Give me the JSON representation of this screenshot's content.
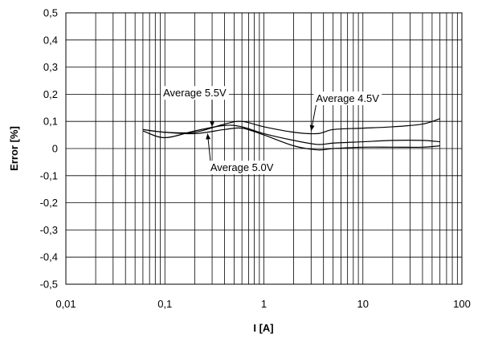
{
  "chart_data": {
    "type": "line",
    "xlabel": "I [A]",
    "ylabel": "Error [%]",
    "x_scale": "log",
    "xlim": [
      0.01,
      100
    ],
    "ylim": [
      -0.5,
      0.5
    ],
    "grid": true,
    "x_ticks": [
      0.01,
      0.1,
      1,
      10,
      100
    ],
    "x_tick_labels": [
      "0,01",
      "0,1",
      "1",
      "10",
      "100"
    ],
    "y_ticks": [
      0.5,
      0.4,
      0.3,
      0.2,
      0.1,
      0,
      -0.1,
      -0.2,
      -0.3,
      -0.4,
      -0.5
    ],
    "y_tick_labels": [
      "0,5",
      "0,4",
      "0,3",
      "0,2",
      "0,1",
      "0",
      "-0,1",
      "-0,2",
      "-0,3",
      "-0,4",
      "-0,5"
    ],
    "series": [
      {
        "x": [
          0.06,
          0.1,
          0.2,
          0.4,
          0.6,
          1,
          2,
          3.5,
          5,
          10,
          20,
          40,
          60
        ],
        "y": [
          0.07,
          0.06,
          0.06,
          0.09,
          0.1,
          0.08,
          0.06,
          0.055,
          0.07,
          0.075,
          0.08,
          0.09,
          0.11
        ]
      },
      {
        "x": [
          0.06,
          0.1,
          0.2,
          0.4,
          0.6,
          1,
          2,
          3.5,
          5,
          10,
          20,
          40,
          60
        ],
        "y": [
          0.065,
          0.04,
          0.065,
          0.085,
          0.08,
          0.055,
          0.03,
          0.015,
          0.02,
          0.025,
          0.03,
          0.03,
          0.025
        ]
      },
      {
        "x": [
          0.06,
          0.1,
          0.2,
          0.4,
          0.6,
          1,
          2,
          3.5,
          5,
          10,
          20,
          40,
          60
        ],
        "y": [
          0.07,
          0.06,
          0.055,
          0.07,
          0.075,
          0.05,
          0.01,
          -0.005,
          0.0,
          0.005,
          0.005,
          0.005,
          0.01
        ]
      }
    ],
    "annotations": [
      {
        "text": "Average 5.5V",
        "label_x": 0.2,
        "label_y": 0.205,
        "arrow_to_x": 0.3,
        "arrow_to_y": 0.08
      },
      {
        "text": "Average 4.5V",
        "label_x": 7,
        "label_y": 0.185,
        "arrow_to_x": 3,
        "arrow_to_y": 0.065
      },
      {
        "text": "Average 5.0V",
        "label_x": 0.6,
        "label_y": -0.07,
        "arrow_to_x": 0.27,
        "arrow_to_y": 0.055
      }
    ]
  }
}
